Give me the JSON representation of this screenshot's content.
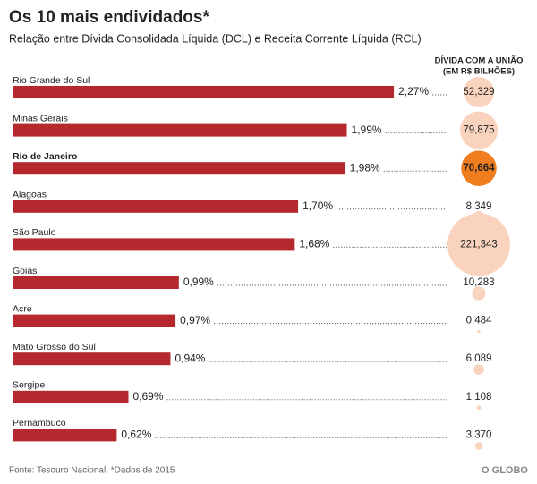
{
  "chart_data": {
    "type": "bar",
    "title": "Os 10 mais endividados*",
    "subtitle": "Relação entre Dívida Consolidada Líquida (DCL) e Receita Corrente Líquida (RCL)",
    "categories": [
      "Rio Grande do Sul",
      "Minas Gerais",
      "Rio de Janeiro",
      "Alagoas",
      "São Paulo",
      "Goiás",
      "Acre",
      "Mato Grosso do Sul",
      "Sergipe",
      "Pernambuco"
    ],
    "values": [
      2.27,
      1.99,
      1.98,
      1.7,
      1.68,
      0.99,
      0.97,
      0.94,
      0.69,
      0.62
    ],
    "value_labels": [
      "2,27%",
      "1,99%",
      "1,98%",
      "1,70%",
      "1,68%",
      "0,99%",
      "0,97%",
      "0,94%",
      "0,69%",
      "0,62%"
    ],
    "emphasis": [
      false,
      false,
      true,
      false,
      false,
      false,
      false,
      false,
      false,
      false
    ],
    "color": "#b5282e",
    "bubbles": {
      "title": "DÍVIDA COM A UNIÃO",
      "subtitle": "(EM R$ BILHÕES)",
      "values": [
        52.329,
        79.875,
        70.664,
        8.349,
        221.343,
        10.283,
        0.484,
        6.089,
        1.108,
        3.37
      ],
      "value_labels": [
        "52,329",
        "79,875",
        "70,664",
        "8,349",
        "221,343",
        "10,283",
        "0,484",
        "6,089",
        "1,108",
        "3,370"
      ],
      "colors": [
        "#f9d3bd",
        "#f9d3bd",
        "#f07d1e",
        "#f9d3bd",
        "#f9d3bd",
        "#f9d3bd",
        "#f9d3bd",
        "#f9d3bd",
        "#f9d3bd",
        "#f9d3bd"
      ]
    },
    "source": "Fonte: Tesouro Nacional. *Dados de 2015",
    "brand": "O GLOBO"
  }
}
